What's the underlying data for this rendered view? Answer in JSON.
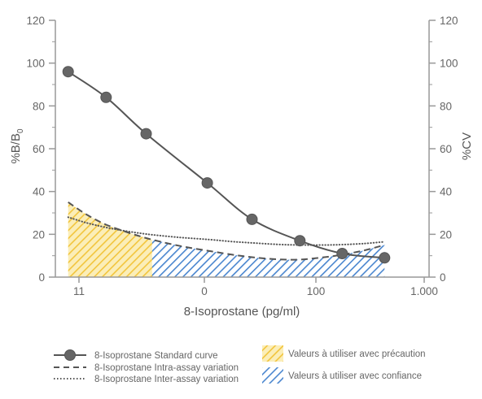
{
  "chart_data": {
    "type": "line",
    "xlabel": "8-Isoprostane (pg/ml)",
    "ylabel_left": "%B/B",
    "ylabel_left_subscript": "0",
    "ylabel_right": "%CV",
    "x_tick_labels": [
      "11",
      "0",
      "100",
      "1.000"
    ],
    "x_scale": "log",
    "ylim": [
      0,
      120
    ],
    "yticks": [
      "0",
      "20",
      "40",
      "60",
      "80",
      "100",
      "120"
    ],
    "grid": false,
    "legend_position": "bottom",
    "series": [
      {
        "name": "8-Isoprostane Standard curve",
        "style": "line-with-markers",
        "color": "#555555",
        "x": [
          1.22,
          2.2,
          4.1,
          10.8,
          27,
          72,
          175,
          430
        ],
        "y": [
          96,
          84,
          67,
          44,
          27,
          17,
          11,
          9
        ]
      },
      {
        "name": "8-Isoprostane Intra-assay variation",
        "style": "dashed",
        "color": "#555555",
        "x": [
          1.22,
          1.6,
          2.2,
          3.2,
          4.5,
          7,
          11,
          18,
          27,
          45,
          72,
          120,
          175,
          280,
          430
        ],
        "y": [
          35,
          29.5,
          24.5,
          20.5,
          17.5,
          14.5,
          12.3,
          10.5,
          9.3,
          8.3,
          8.2,
          9.3,
          10.5,
          12.5,
          15
        ]
      },
      {
        "name": "8-Isoprostane Inter-assay variation",
        "style": "dotted",
        "color": "#555555",
        "x": [
          1.22,
          1.6,
          2.2,
          3.2,
          4.5,
          7,
          11,
          18,
          27,
          45,
          72,
          120,
          175,
          280,
          430
        ],
        "y": [
          28,
          25.5,
          23.2,
          21.2,
          19.8,
          18.5,
          17.6,
          16.6,
          16,
          15.3,
          15,
          15,
          15.2,
          15.7,
          16.5
        ]
      }
    ],
    "regions": [
      {
        "name": "Valeurs à utiliser avec précaution",
        "color": "#f5d76e",
        "x_range": [
          1.22,
          4.5
        ],
        "bounded_by": "8-Isoprostane Intra-assay variation"
      },
      {
        "name": "Valeurs à utiliser avec confiance",
        "color": "#3d7ec9",
        "x_range": [
          4.5,
          430
        ],
        "bounded_by": "8-Isoprostane Intra-assay variation"
      }
    ]
  }
}
